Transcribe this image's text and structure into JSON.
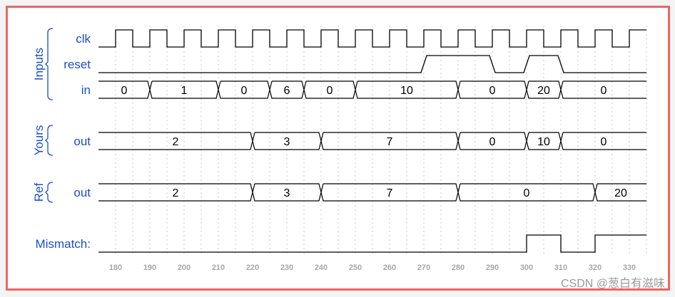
{
  "time_axis": {
    "start": 175,
    "end": 335,
    "ticks": [
      180,
      190,
      200,
      210,
      220,
      230,
      240,
      250,
      260,
      270,
      280,
      290,
      300,
      310,
      320,
      330
    ]
  },
  "groups": [
    {
      "label": "Inputs",
      "signals": [
        "clk",
        "reset",
        "in"
      ]
    },
    {
      "label": "Yours",
      "signals": [
        "out"
      ]
    },
    {
      "label": "Ref",
      "signals": [
        "out"
      ]
    }
  ],
  "signals": {
    "clk": {
      "label": "clk",
      "type": "clock",
      "first_rise": 180,
      "period": 10
    },
    "reset": {
      "label": "reset",
      "type": "bit",
      "segments": [
        [
          175,
          0
        ],
        [
          270,
          1
        ],
        [
          290,
          0
        ],
        [
          300,
          1
        ],
        [
          310,
          0
        ]
      ]
    },
    "in": {
      "label": "in",
      "type": "bus",
      "segments": [
        [
          175,
          "0"
        ],
        [
          190,
          "1"
        ],
        [
          210,
          "0"
        ],
        [
          225,
          "6"
        ],
        [
          235,
          "0"
        ],
        [
          250,
          "10"
        ],
        [
          280,
          "0"
        ],
        [
          300,
          "20"
        ],
        [
          310,
          "0"
        ]
      ]
    },
    "yours_out": {
      "label": "out",
      "type": "bus",
      "segments": [
        [
          175,
          "2"
        ],
        [
          220,
          "3"
        ],
        [
          240,
          "7"
        ],
        [
          280,
          "0"
        ],
        [
          300,
          "10"
        ],
        [
          310,
          "0"
        ]
      ]
    },
    "ref_out": {
      "label": "out",
      "type": "bus",
      "segments": [
        [
          175,
          "2"
        ],
        [
          220,
          "3"
        ],
        [
          240,
          "7"
        ],
        [
          280,
          "0"
        ],
        [
          320,
          "20"
        ]
      ]
    },
    "mismatch": {
      "label": "Mismatch:",
      "type": "bit",
      "segments": [
        [
          175,
          0
        ],
        [
          300,
          1
        ],
        [
          310,
          0
        ],
        [
          320,
          1
        ]
      ]
    }
  },
  "colors": {
    "label": "#1a4fd0",
    "border": "#f06464",
    "wave": "#000000",
    "grid": "#c8c8c8"
  },
  "watermark": "CSDN @葱白有滋味"
}
